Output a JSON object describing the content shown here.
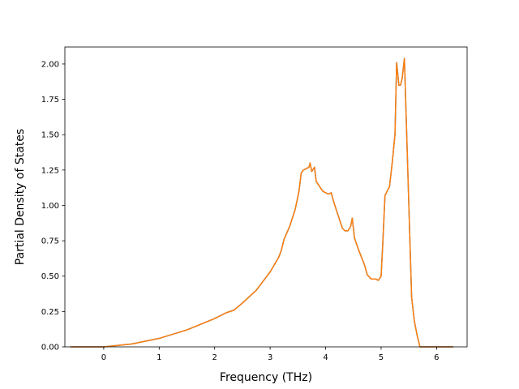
{
  "chart_data": {
    "type": "line",
    "xlabel": "Frequency (THz)",
    "ylabel": "Partial Density of States",
    "xlim": [
      -0.7,
      6.55
    ],
    "ylim": [
      0.0,
      2.12
    ],
    "xticks": [
      0,
      1,
      2,
      3,
      4,
      5,
      6
    ],
    "xtick_labels": [
      "0",
      "1",
      "2",
      "3",
      "4",
      "5",
      "6"
    ],
    "yticks": [
      0.0,
      0.25,
      0.5,
      0.75,
      1.0,
      1.25,
      1.5,
      1.75,
      2.0
    ],
    "ytick_labels": [
      "0.00",
      "0.25",
      "0.50",
      "0.75",
      "1.00",
      "1.25",
      "1.50",
      "1.75",
      "2.00"
    ],
    "grid": false,
    "series": [
      {
        "color": "#1f77b4",
        "x": [
          -0.6,
          0.0,
          0.5,
          1.0,
          1.5,
          2.0,
          2.2,
          2.35,
          2.5,
          2.75,
          3.0,
          3.15,
          3.2,
          3.25,
          3.35,
          3.45,
          3.52,
          3.56,
          3.6,
          3.65,
          3.7,
          3.72,
          3.75,
          3.8,
          3.83,
          3.88,
          3.95,
          4.05,
          4.1,
          4.15,
          4.2,
          4.3,
          4.35,
          4.4,
          4.45,
          4.48,
          4.5,
          4.52,
          4.6,
          4.7,
          4.75,
          4.82,
          4.9,
          4.95,
          5.0,
          5.03,
          5.07,
          5.12,
          5.15,
          5.2,
          5.25,
          5.28,
          5.32,
          5.35,
          5.38,
          5.42,
          5.45,
          5.5,
          5.55,
          5.6,
          5.65,
          5.7,
          6.3
        ],
        "y": [
          0.0,
          0.0,
          0.02,
          0.06,
          0.12,
          0.2,
          0.24,
          0.26,
          0.31,
          0.4,
          0.53,
          0.63,
          0.68,
          0.76,
          0.85,
          0.97,
          1.1,
          1.23,
          1.25,
          1.26,
          1.27,
          1.3,
          1.24,
          1.27,
          1.17,
          1.14,
          1.1,
          1.08,
          1.09,
          1.02,
          0.96,
          0.84,
          0.82,
          0.82,
          0.85,
          0.91,
          0.84,
          0.77,
          0.68,
          0.58,
          0.51,
          0.48,
          0.48,
          0.47,
          0.5,
          0.73,
          1.07,
          1.11,
          1.13,
          1.3,
          1.5,
          2.01,
          1.85,
          1.85,
          1.9,
          2.04,
          1.65,
          1.0,
          0.35,
          0.18,
          0.08,
          0.0,
          0.0
        ]
      },
      {
        "color": "#ff7f0e",
        "x": [
          -0.6,
          0.0,
          0.5,
          1.0,
          1.5,
          2.0,
          2.2,
          2.35,
          2.5,
          2.75,
          3.0,
          3.15,
          3.2,
          3.25,
          3.35,
          3.45,
          3.52,
          3.56,
          3.6,
          3.65,
          3.7,
          3.72,
          3.75,
          3.8,
          3.83,
          3.88,
          3.95,
          4.05,
          4.1,
          4.15,
          4.2,
          4.3,
          4.35,
          4.4,
          4.45,
          4.48,
          4.5,
          4.52,
          4.6,
          4.7,
          4.75,
          4.82,
          4.9,
          4.95,
          5.0,
          5.03,
          5.07,
          5.12,
          5.15,
          5.2,
          5.25,
          5.28,
          5.32,
          5.35,
          5.38,
          5.42,
          5.45,
          5.5,
          5.55,
          5.6,
          5.65,
          5.7,
          6.3
        ],
        "y": [
          0.0,
          0.0,
          0.02,
          0.06,
          0.12,
          0.2,
          0.24,
          0.26,
          0.31,
          0.4,
          0.53,
          0.63,
          0.68,
          0.76,
          0.85,
          0.97,
          1.1,
          1.23,
          1.25,
          1.26,
          1.27,
          1.3,
          1.24,
          1.27,
          1.17,
          1.14,
          1.1,
          1.08,
          1.09,
          1.02,
          0.96,
          0.84,
          0.82,
          0.82,
          0.85,
          0.91,
          0.84,
          0.77,
          0.68,
          0.58,
          0.51,
          0.48,
          0.48,
          0.47,
          0.5,
          0.73,
          1.07,
          1.11,
          1.13,
          1.3,
          1.5,
          2.01,
          1.85,
          1.85,
          1.9,
          2.04,
          1.65,
          1.0,
          0.35,
          0.18,
          0.08,
          0.0,
          0.0
        ]
      }
    ]
  }
}
